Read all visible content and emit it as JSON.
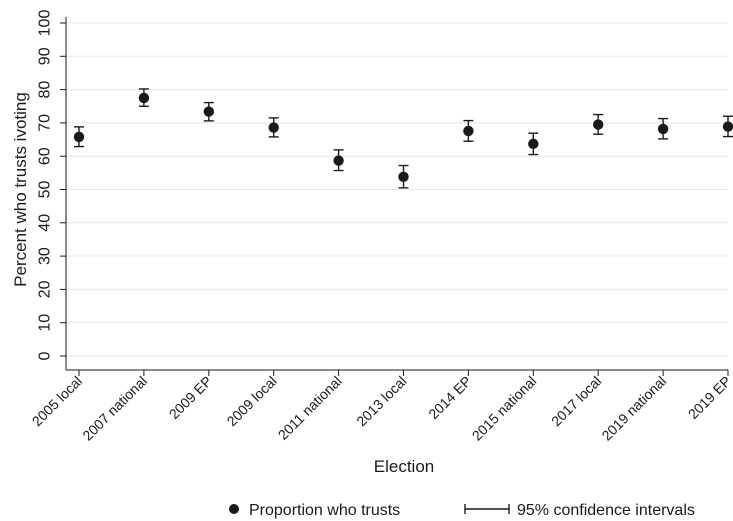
{
  "chart_data": {
    "type": "scatter",
    "title": "",
    "xlabel": "Election",
    "ylabel": "Percent who trusts ivoting",
    "ylim": [
      0,
      100
    ],
    "yticks": [
      0,
      10,
      20,
      30,
      40,
      50,
      60,
      70,
      80,
      90,
      100
    ],
    "grid": "horizontal",
    "categories": [
      "2005 local",
      "2007 national",
      "2009 EP",
      "2009 local",
      "2011 national",
      "2013 local",
      "2014 EP",
      "2015 national",
      "2017 local",
      "2019 national",
      "2019 EP"
    ],
    "series": [
      {
        "name": "Proportion who trusts",
        "values": [
          65.8,
          77.5,
          73.4,
          68.6,
          58.7,
          53.8,
          67.6,
          63.7,
          69.5,
          68.2,
          68.9
        ],
        "ci_lower": [
          62.9,
          75.0,
          70.6,
          65.8,
          55.7,
          50.5,
          64.5,
          60.5,
          66.6,
          65.2,
          65.9
        ],
        "ci_upper": [
          68.8,
          80.2,
          76.1,
          71.5,
          61.9,
          57.2,
          70.7,
          66.9,
          72.5,
          71.3,
          72.0
        ]
      }
    ],
    "legend": {
      "placement": "bottom",
      "point_label": "Proportion who trusts",
      "ci_label": "95% confidence intervals"
    },
    "colors": {
      "marker": "#1a1a1a",
      "grid": "#e8e8e8",
      "axis": "#1a1a1a"
    }
  }
}
